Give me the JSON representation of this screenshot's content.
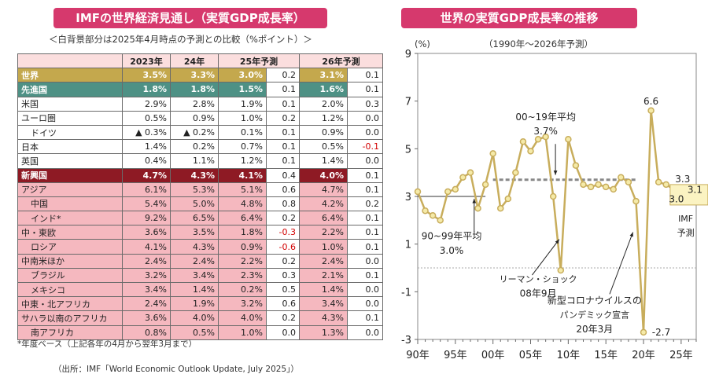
{
  "left_panel": {
    "title": "IMFの世界経済見通し（実質GDP成長率）",
    "subtitle": "＜白背景部分は2025年4月時点の予測との比較（%ポイント）＞",
    "headers": [
      "",
      "2023年",
      "24年",
      "25年予測",
      "",
      "26年予測",
      ""
    ],
    "rows": [
      {
        "name": "世界",
        "v23": "3.5%",
        "v24": "3.3%",
        "v25": "3.0%",
        "d25": "0.2",
        "v26": "3.1%",
        "d26": "0.1"
      },
      {
        "name": "先進国",
        "v23": "1.8%",
        "v24": "1.8%",
        "v25": "1.5%",
        "d25": "0.1",
        "v26": "1.6%",
        "d26": "0.1"
      },
      {
        "name": "米国",
        "v23": "2.9%",
        "v24": "2.8%",
        "v25": "1.9%",
        "d25": "0.1",
        "v26": "2.0%",
        "d26": "0.3"
      },
      {
        "name": "ユーロ圏",
        "v23": "0.5%",
        "v24": "0.9%",
        "v25": "1.0%",
        "d25": "0.2",
        "v26": "1.2%",
        "d26": "0.0"
      },
      {
        "name": "ドイツ",
        "v23": "▲ 0.3%",
        "v24": "▲ 0.2%",
        "v25": "0.1%",
        "d25": "0.1",
        "v26": "0.9%",
        "d26": "0.0"
      },
      {
        "name": "日本",
        "v23": "1.4%",
        "v24": "0.2%",
        "v25": "0.7%",
        "d25": "0.1",
        "v26": "0.5%",
        "d26": "-0.1"
      },
      {
        "name": "英国",
        "v23": "0.4%",
        "v24": "1.1%",
        "v25": "1.2%",
        "d25": "0.1",
        "v26": "1.4%",
        "d26": "0.0"
      },
      {
        "name": "新興国",
        "v23": "4.7%",
        "v24": "4.3%",
        "v25": "4.1%",
        "d25": "0.4",
        "v26": "4.0%",
        "d26": "0.1"
      },
      {
        "name": "アジア",
        "v23": "6.1%",
        "v24": "5.3%",
        "v25": "5.1%",
        "d25": "0.6",
        "v26": "4.7%",
        "d26": "0.1"
      },
      {
        "name": "中国",
        "v23": "5.4%",
        "v24": "5.0%",
        "v25": "4.8%",
        "d25": "0.8",
        "v26": "4.2%",
        "d26": "0.2"
      },
      {
        "name": "インド*",
        "v23": "9.2%",
        "v24": "6.5%",
        "v25": "6.4%",
        "d25": "0.2",
        "v26": "6.4%",
        "d26": "0.1"
      },
      {
        "name": "中・東欧",
        "v23": "3.6%",
        "v24": "3.5%",
        "v25": "1.8%",
        "d25": "-0.3",
        "v26": "2.2%",
        "d26": "0.1"
      },
      {
        "name": "ロシア",
        "v23": "4.1%",
        "v24": "4.3%",
        "v25": "0.9%",
        "d25": "-0.6",
        "v26": "1.0%",
        "d26": "0.1"
      },
      {
        "name": "中南米ほか",
        "v23": "2.4%",
        "v24": "2.4%",
        "v25": "2.2%",
        "d25": "0.2",
        "v26": "2.4%",
        "d26": "0.0"
      },
      {
        "name": "ブラジル",
        "v23": "3.2%",
        "v24": "3.4%",
        "v25": "2.3%",
        "d25": "0.3",
        "v26": "2.1%",
        "d26": "0.1"
      },
      {
        "name": "メキシコ",
        "v23": "3.4%",
        "v24": "1.4%",
        "v25": "0.2%",
        "d25": "0.5",
        "v26": "1.4%",
        "d26": "0.0"
      },
      {
        "name": "中東・北アフリカ",
        "v23": "2.4%",
        "v24": "1.9%",
        "v25": "3.2%",
        "d25": "0.6",
        "v26": "3.4%",
        "d26": "0.0"
      },
      {
        "name": "サハラ以南のアフリカ",
        "v23": "3.6%",
        "v24": "4.0%",
        "v25": "4.0%",
        "d25": "0.2",
        "v26": "4.3%",
        "d26": "0.1"
      },
      {
        "name": "南アフリカ",
        "v23": "0.8%",
        "v24": "0.5%",
        "v25": "1.0%",
        "d25": "0.0",
        "v26": "1.3%",
        "d26": "0.0"
      }
    ],
    "footnote": "*年度ベース（上記各年の4月から翌年3月まで）",
    "source": "（出所：IMF「World Economic Outlook Update, July 2025」）"
  },
  "right_panel": {
    "title": "世界の実質GDP成長率の推移",
    "subtitle": "（1990年～2026年予測）"
  },
  "colors": {
    "banner": "#d6396d",
    "line": "#c8ad5c",
    "marker_fill": "#f5eaa8",
    "avg_line": "#888888"
  },
  "chart_data": {
    "type": "line",
    "title": "世界の実質GDP成長率の推移",
    "unit_label": "(%)",
    "ylim": [
      -3,
      9
    ],
    "yticks": [
      -3,
      -1,
      1,
      3,
      5,
      7,
      9
    ],
    "xlim": [
      1990,
      2027
    ],
    "xticks": [
      1990,
      1995,
      2000,
      2005,
      2010,
      2015,
      2020,
      2025
    ],
    "xtick_labels": [
      "90年",
      "95年",
      "00年",
      "05年",
      "10年",
      "15年",
      "20年",
      "25年"
    ],
    "series": [
      {
        "name": "世界の実質GDP成長率",
        "x": [
          1990,
          1991,
          1992,
          1993,
          1994,
          1995,
          1996,
          1997,
          1998,
          1999,
          2000,
          2001,
          2002,
          2003,
          2004,
          2005,
          2006,
          2007,
          2008,
          2009,
          2010,
          2011,
          2012,
          2013,
          2014,
          2015,
          2016,
          2017,
          2018,
          2019,
          2020,
          2021,
          2022,
          2023,
          2024,
          2025,
          2026
        ],
        "y": [
          3.2,
          2.4,
          2.2,
          2.0,
          3.2,
          3.3,
          3.8,
          4.0,
          2.5,
          3.5,
          4.8,
          2.5,
          2.9,
          4.0,
          5.3,
          4.9,
          5.4,
          5.5,
          3.0,
          -0.1,
          5.4,
          4.3,
          3.5,
          3.4,
          3.5,
          3.4,
          3.3,
          3.8,
          3.6,
          2.8,
          -2.7,
          6.6,
          3.6,
          3.5,
          3.3,
          3.0,
          3.1
        ]
      }
    ],
    "reference_lines": [
      {
        "name": "90~99年平均",
        "value": 3.0,
        "x_range": [
          1990,
          1999
        ]
      },
      {
        "name": "00~19年平均",
        "value": 3.7,
        "x_range": [
          2000,
          2019
        ]
      }
    ],
    "annotations": [
      {
        "text": "00~19年平均",
        "sub": "3.7%"
      },
      {
        "text": "90~99年平均",
        "sub": "3.0%"
      },
      {
        "text": "リーマン・ショック",
        "sub": "08年9月"
      },
      {
        "text": "新型コロナウイルスの",
        "sub": "パンデミック宣言",
        "sub2": "20年3月"
      },
      {
        "text": "6.6"
      },
      {
        "text": "-2.7"
      },
      {
        "text": "3.3"
      },
      {
        "text": "3.0"
      },
      {
        "text": "3.1"
      },
      {
        "text": "IMF",
        "sub": "予測"
      }
    ]
  }
}
